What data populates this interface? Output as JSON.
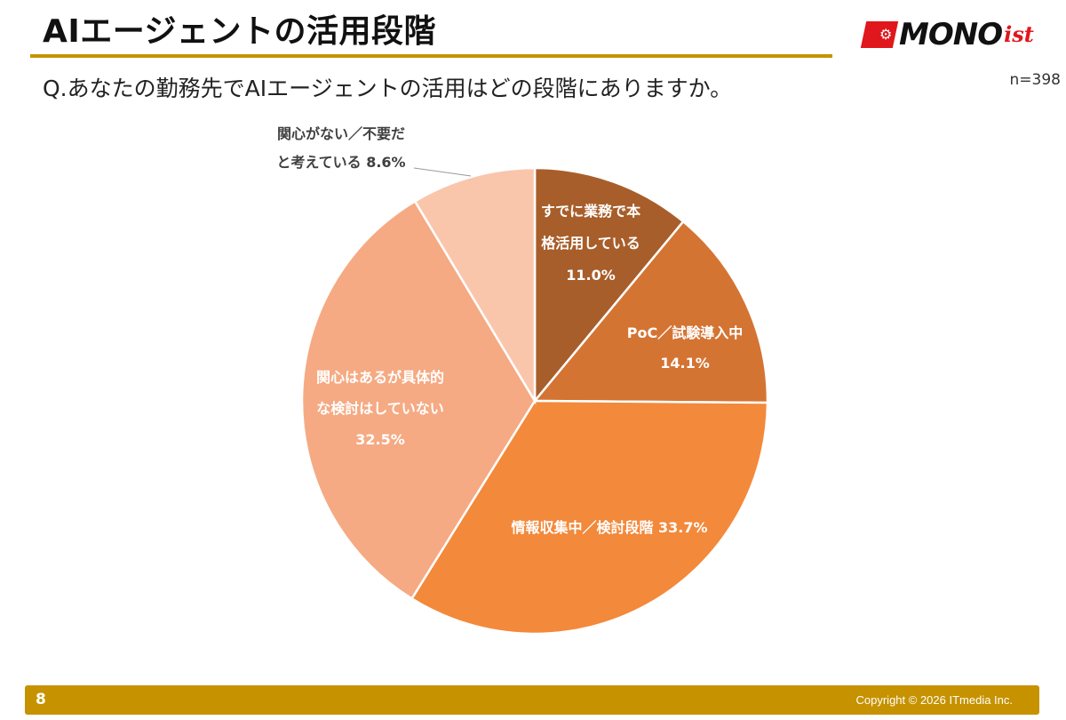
{
  "header": {
    "title": "AIエージェントの活用段階",
    "logo_text": "MONO",
    "logo_suffix": "ist"
  },
  "question": "Q.あなたの勤務先でAIエージェントの活用はどの段階にありますか。",
  "sample_size": "n=398",
  "footer": {
    "page_number": "8",
    "copyright": "Copyright © 2026 ITmedia Inc."
  },
  "colors": {
    "accent_bar": "#c69200",
    "logo_red": "#e0171c"
  },
  "chart_data": {
    "type": "pie",
    "start_angle_deg": 0,
    "direction": "clockwise",
    "slices": [
      {
        "label_lines": [
          "すでに業務で本",
          "格活用している",
          "11.0%"
        ],
        "value": 11.0,
        "color": "#a85e2a",
        "label_color": "#ffffff",
        "label_style": "inside"
      },
      {
        "label_lines": [
          "PoC／試験導入中",
          "14.1%"
        ],
        "value": 14.1,
        "color": "#d47433",
        "label_color": "#ffffff",
        "label_style": "inside"
      },
      {
        "label_lines": [
          "情報収集中／検討段階 33.7%"
        ],
        "value": 33.7,
        "color": "#f3893b",
        "label_color": "#ffffff",
        "label_style": "inside"
      },
      {
        "label_lines": [
          "関心はあるが具体的",
          "な検討はしていない",
          "32.5%"
        ],
        "value": 32.5,
        "color": "#f5aa83",
        "label_color": "#ffffff",
        "label_style": "inside"
      },
      {
        "label_lines": [
          "関心がない／不要だ",
          "と考えている 8.6%"
        ],
        "value": 8.6,
        "color": "#f9c6ac",
        "label_color": "#404040",
        "label_style": "callout"
      }
    ]
  }
}
